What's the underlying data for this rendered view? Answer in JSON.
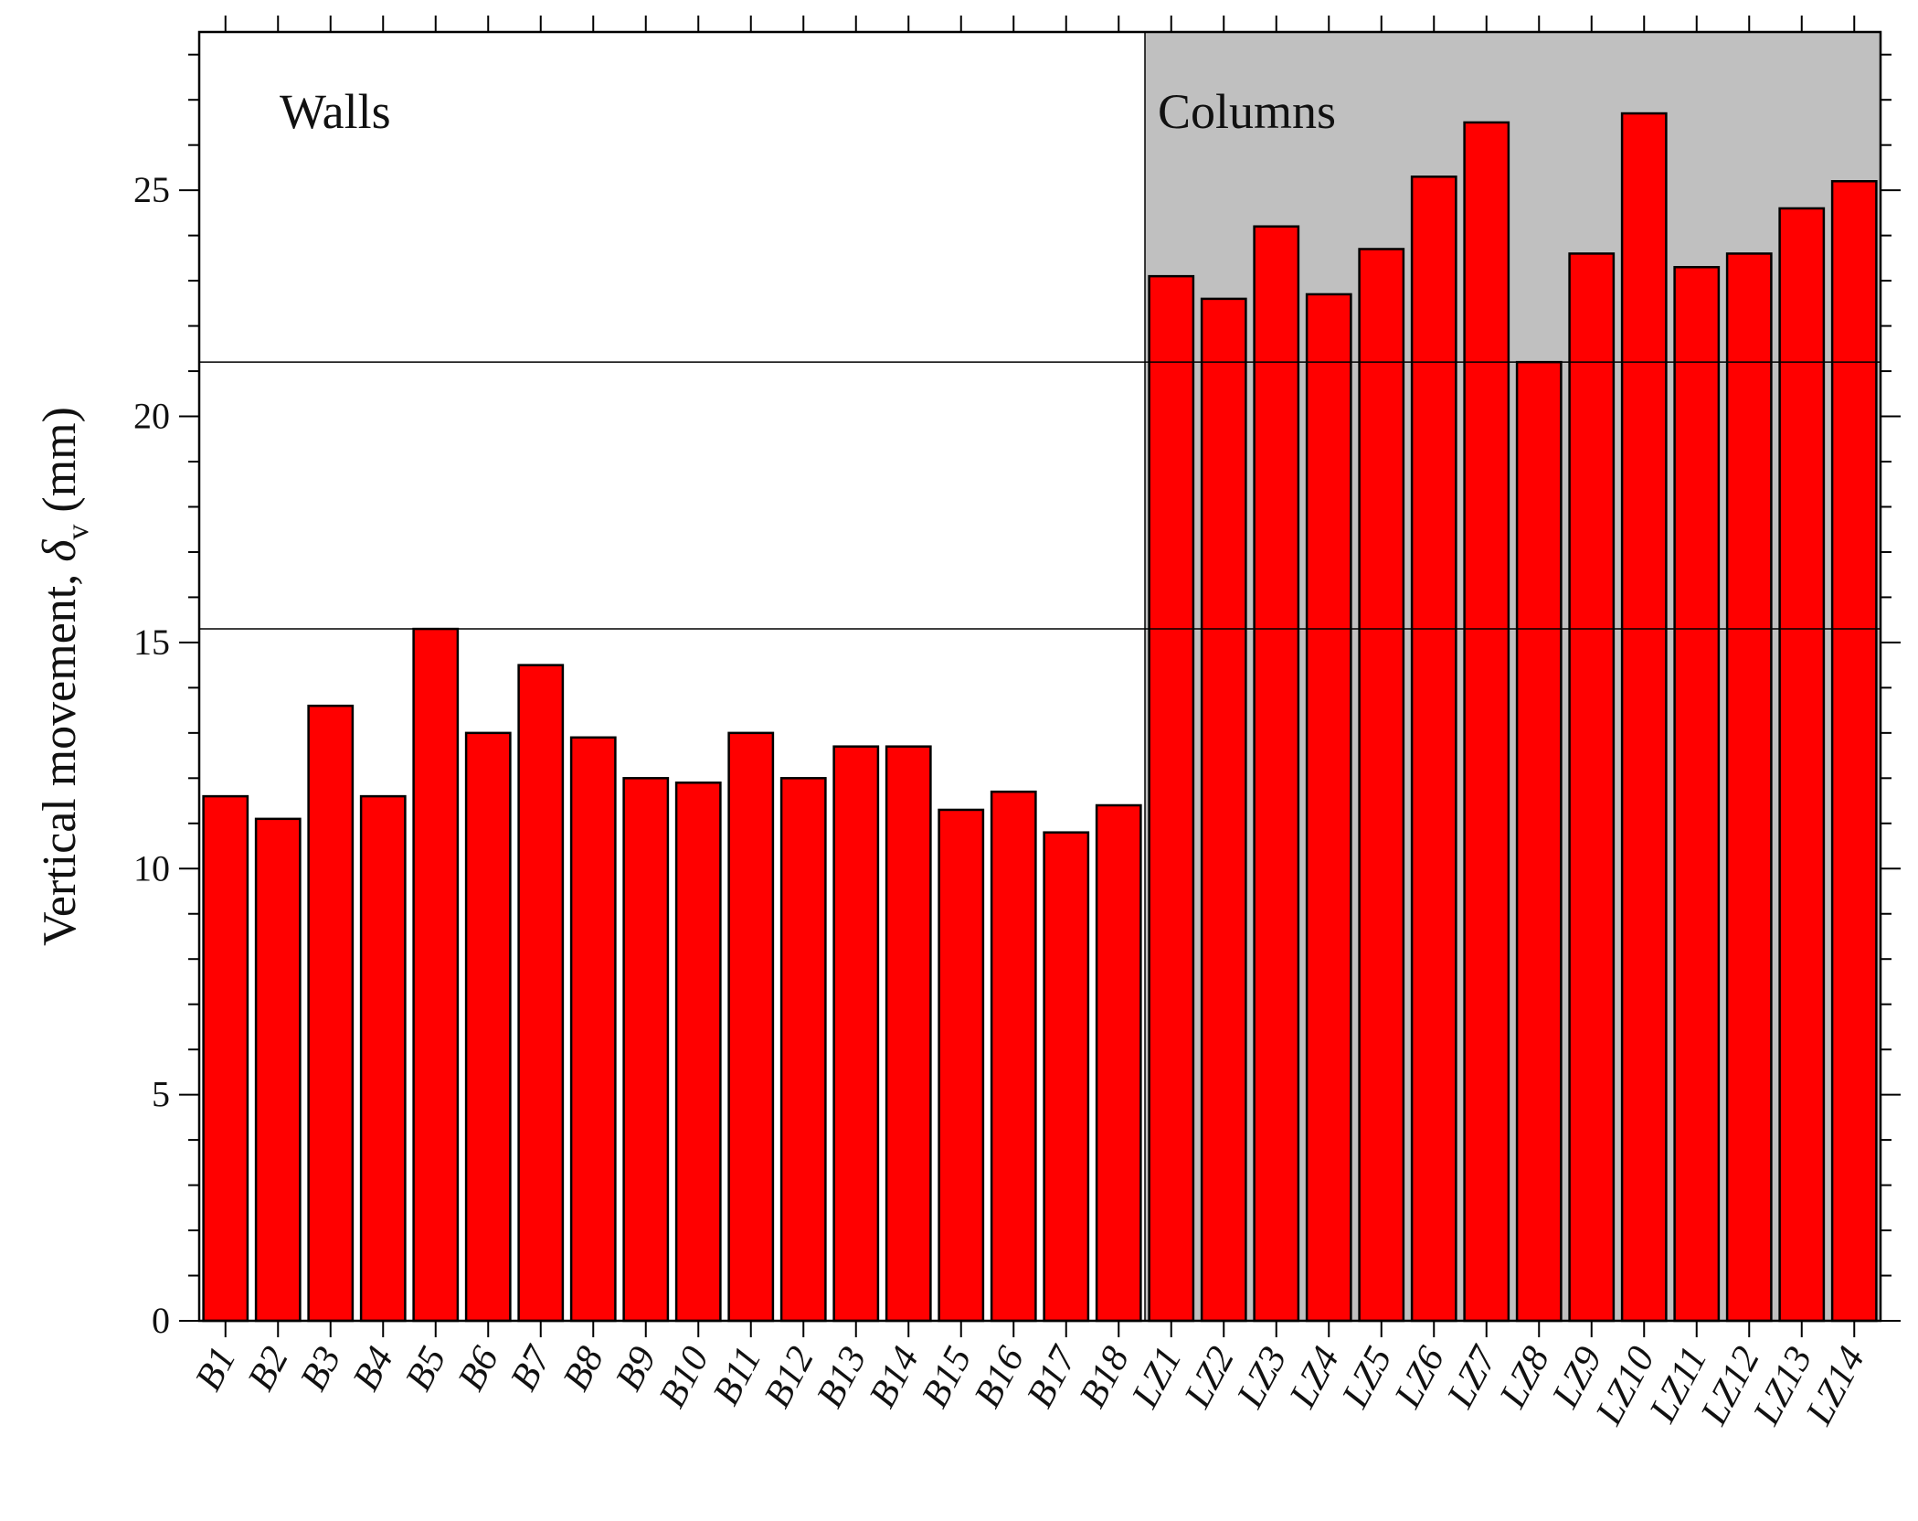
{
  "chart_data": {
    "type": "bar",
    "title": "",
    "xlabel": "",
    "ylabel": {
      "prefix": "Vertical movement, ",
      "symbol": "δ",
      "subscript": "v",
      "unit": " (mm)"
    },
    "ylim": [
      0,
      28.5
    ],
    "yticks": [
      "0",
      "5",
      "10",
      "15",
      "20",
      "25"
    ],
    "ytick_values": [
      0,
      5,
      10,
      15,
      20,
      25
    ],
    "categories": [
      "B1",
      "B2",
      "B3",
      "B4",
      "B5",
      "B6",
      "B7",
      "B8",
      "B9",
      "B10",
      "B11",
      "B12",
      "B13",
      "B14",
      "B15",
      "B16",
      "B17",
      "B18",
      "LZ1",
      "LZ2",
      "LZ3",
      "LZ4",
      "LZ5",
      "LZ6",
      "LZ7",
      "LZ8",
      "LZ9",
      "LZ10",
      "LZ11",
      "LZ12",
      "LZ13",
      "LZ14"
    ],
    "values": [
      11.6,
      11.1,
      13.6,
      11.6,
      15.3,
      13.0,
      14.5,
      12.9,
      12.0,
      11.9,
      13.0,
      12.0,
      12.7,
      12.7,
      11.3,
      11.7,
      10.8,
      11.4,
      23.1,
      22.6,
      24.2,
      22.7,
      23.7,
      25.3,
      26.5,
      21.2,
      23.6,
      26.7,
      23.3,
      23.6,
      24.6,
      25.2
    ],
    "regions": [
      {
        "label": "Walls",
        "from": "B1",
        "to": "B18",
        "shaded": false
      },
      {
        "label": "Columns",
        "from": "LZ1",
        "to": "LZ14",
        "shaded": true
      }
    ],
    "reference_lines": [
      15.3,
      21.2
    ],
    "grid": false,
    "legend": "none"
  },
  "colors": {
    "bar_fill": "#ff0000",
    "bar_stroke": "#000000",
    "shade": "#c0c0c0",
    "axis": "#000000",
    "reference_line": "#000000"
  }
}
